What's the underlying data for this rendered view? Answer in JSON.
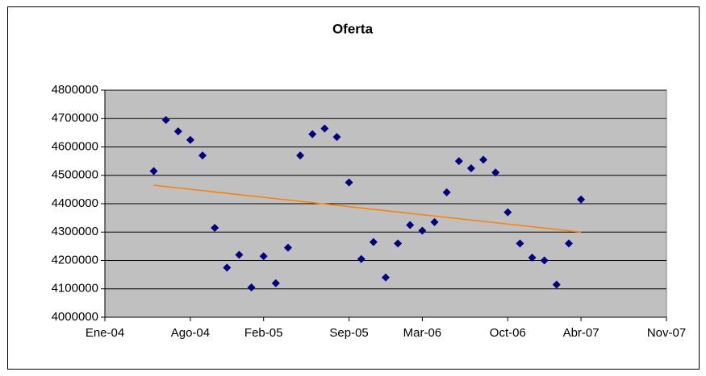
{
  "chart_data": {
    "type": "scatter",
    "title": "Oferta",
    "x": [
      "2004-05",
      "2004-06",
      "2004-07",
      "2004-08",
      "2004-09",
      "2004-10",
      "2004-11",
      "2004-12",
      "2005-01",
      "2005-02",
      "2005-03",
      "2005-04",
      "2005-05",
      "2005-06",
      "2005-07",
      "2005-08",
      "2005-09",
      "2005-10",
      "2005-11",
      "2005-12",
      "2006-01",
      "2006-02",
      "2006-03",
      "2006-04",
      "2006-05",
      "2006-06",
      "2006-07",
      "2006-08",
      "2006-09",
      "2006-10",
      "2006-11",
      "2006-12",
      "2007-01",
      "2007-02",
      "2007-03",
      "2007-04"
    ],
    "values": [
      4515000,
      4695000,
      4655000,
      4625000,
      4570000,
      4315000,
      4175000,
      4220000,
      4105000,
      4215000,
      4120000,
      4245000,
      4570000,
      4645000,
      4665000,
      4635000,
      4475000,
      4205000,
      4265000,
      4140000,
      4260000,
      4325000,
      4305000,
      4335000,
      4440000,
      4550000,
      4525000,
      4555000,
      4510000,
      4370000,
      4260000,
      4210000,
      4200000,
      4115000,
      4260000,
      4415000
    ],
    "color": "#000080",
    "trendline": {
      "x": [
        "2004-05",
        "2007-04"
      ],
      "values": [
        4465000,
        4300000
      ],
      "color": "#ff8000"
    },
    "xlim": [
      "2004-01",
      "2007-11"
    ],
    "xticks": [
      {
        "value": "2004-01",
        "label": "Ene-04"
      },
      {
        "value": "2004-08",
        "label": "Ago-04"
      },
      {
        "value": "2005-02",
        "label": "Feb-05"
      },
      {
        "value": "2005-09",
        "label": "Sep-05"
      },
      {
        "value": "2006-03",
        "label": "Mar-06"
      },
      {
        "value": "2006-10",
        "label": "Oct-06"
      },
      {
        "value": "2007-04",
        "label": "Abr-07"
      },
      {
        "value": "2007-11",
        "label": "Nov-07"
      }
    ],
    "ylim": [
      4000000,
      4800000
    ],
    "yticks": [
      4000000,
      4100000,
      4200000,
      4300000,
      4400000,
      4500000,
      4600000,
      4700000,
      4800000
    ],
    "grid": true,
    "plot_background": "#c0c0c0"
  }
}
